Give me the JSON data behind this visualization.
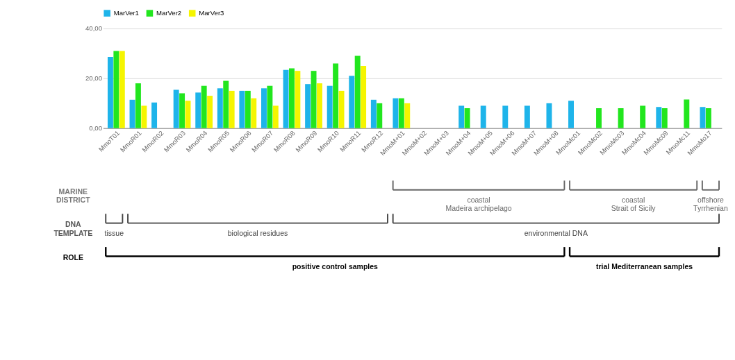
{
  "chart_data": {
    "type": "bar",
    "categories": [
      "MmoT01",
      "MmoR01",
      "MmoR02",
      "MmoR03",
      "MmoR04",
      "MmoR05",
      "MmoR06",
      "MmoR07",
      "MmoR08",
      "MmoR09",
      "MmoR10",
      "MmoR11",
      "MmoR12",
      "MmoM+01",
      "MmoM+02",
      "MmoM+03",
      "MmoM+04",
      "MmoM+05",
      "MmoM+06",
      "MmoM+07",
      "MmoM+08",
      "MmoMc01",
      "MmoMc02",
      "MmoMc03",
      "MmoMc04",
      "MmoMc09",
      "MmoMc11",
      "MmoMo17"
    ],
    "series": [
      {
        "name": "MarVer1",
        "color": "#1eb4ea",
        "values": [
          28.6,
          11.4,
          10.3,
          15.4,
          14.3,
          16,
          15,
          16,
          23.4,
          17.7,
          17,
          21,
          11.4,
          12,
          0,
          0,
          9,
          9,
          9,
          9,
          10,
          11,
          0,
          0,
          0,
          8.5,
          0,
          8.5
        ]
      },
      {
        "name": "MarVer2",
        "color": "#22e61e",
        "values": [
          31,
          18,
          0,
          14,
          17,
          19,
          15,
          17,
          24,
          23,
          26,
          29,
          10,
          12,
          0,
          0,
          8,
          0,
          0,
          0,
          0,
          0,
          8,
          8,
          9,
          8,
          11.5,
          8
        ]
      },
      {
        "name": "MarVer3",
        "color": "#f5f500",
        "values": [
          31,
          9,
          0,
          11,
          13,
          15,
          12,
          9,
          23,
          18,
          15,
          25,
          0,
          10,
          0,
          0,
          0,
          0,
          0,
          0,
          0,
          0,
          0,
          0,
          0,
          0,
          0,
          0
        ]
      }
    ],
    "ylim": [
      0,
      40
    ],
    "yticks": [
      {
        "value": 0,
        "label": "0,00"
      },
      {
        "value": 20,
        "label": "20,00"
      },
      {
        "value": 40,
        "label": "40,00"
      }
    ],
    "grid": "y",
    "legend": "top",
    "annotations": [
      "MARINE\nDISTRICT",
      "coastal\nMadeira archipelago",
      "coastal\nStrait of Sicily",
      "offshore\nTyrrhenian",
      "DNA\nTEMPLATE",
      "tissue",
      "biological residues",
      "environmental DNA",
      "ROLE",
      "positive control samples",
      "trial Mediterranean samples"
    ]
  }
}
